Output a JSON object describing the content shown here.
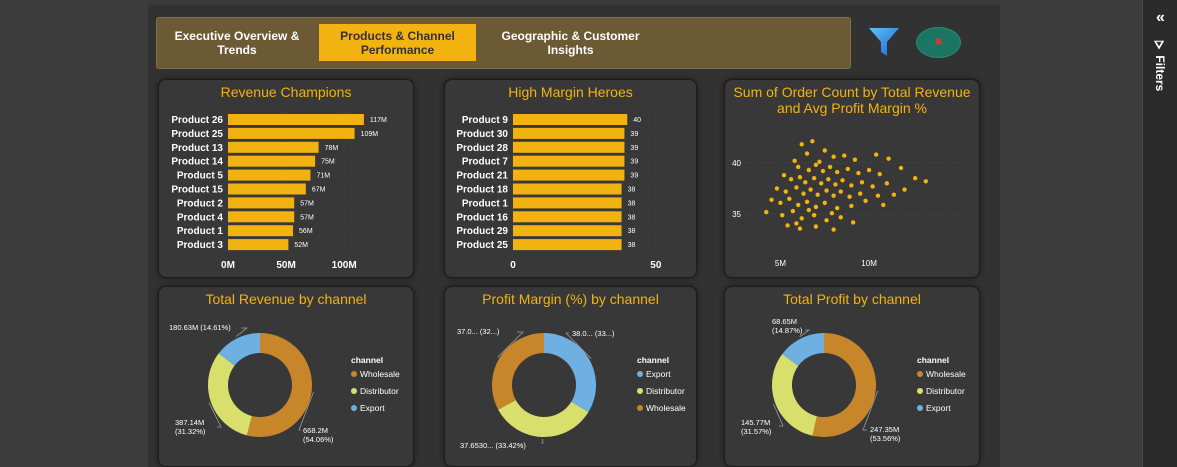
{
  "colors": {
    "accent": "#f2b311",
    "wholesale": "#c8862a",
    "distributor": "#d9df6c",
    "export": "#6fb0e3"
  },
  "tabs": [
    {
      "label": "Executive Overview & Trends",
      "line1": "Executive Overview &",
      "line2": "Trends"
    },
    {
      "label": "Products & Channel Performance",
      "line1": "Products & Channel",
      "line2": "Performance"
    },
    {
      "label": "Geographic & Customer Insights",
      "line1": "Geographic & Customer",
      "line2": "Insights"
    }
  ],
  "icons": {
    "filter": "filter-funnel-icon",
    "clear": "clear-filter-icon",
    "collapse": "double-chevron-left-icon"
  },
  "side_panel": {
    "collapse_glyph": "«",
    "label": "Filters",
    "funnel_glyph": "⛛"
  },
  "chart_data": [
    {
      "type": "bar",
      "title": "Revenue Champions",
      "categories": [
        "Product 26",
        "Product 25",
        "Product 13",
        "Product 14",
        "Product 5",
        "Product 15",
        "Product 2",
        "Product 4",
        "Product 1",
        "Product 3"
      ],
      "values": [
        117,
        109,
        78,
        75,
        71,
        67,
        57,
        57,
        56,
        52
      ],
      "data_labels": [
        "117M",
        "109M",
        "78M",
        "75M",
        "71M",
        "67M",
        "57M",
        "57M",
        "56M",
        "52M"
      ],
      "ticks": [
        0,
        50,
        100
      ],
      "tick_labels": [
        "0M",
        "50M",
        "100M"
      ],
      "xlim": [
        0,
        130
      ]
    },
    {
      "type": "bar",
      "title": "High Margin Heroes",
      "categories": [
        "Product 9",
        "Product 30",
        "Product 28",
        "Product 7",
        "Product 21",
        "Product 18",
        "Product 1",
        "Product 16",
        "Product 29",
        "Product 25"
      ],
      "values": [
        40,
        39,
        39,
        39,
        39,
        38,
        38,
        38,
        38,
        38
      ],
      "data_labels": [
        "40",
        "39",
        "39",
        "39",
        "39",
        "38",
        "38",
        "38",
        "38",
        "38"
      ],
      "ticks": [
        0,
        50
      ],
      "tick_labels": [
        "0",
        "50"
      ],
      "xlim": [
        0,
        56
      ]
    },
    {
      "type": "scatter",
      "title": "Sum of Order Count by Total Revenue and Avg Profit Margin %",
      "title_line1": "Sum of Order Count by Total Revenue",
      "title_line2": "and Avg Profit Margin %",
      "xlim": [
        3,
        14
      ],
      "ylim": [
        32,
        43
      ],
      "x_ticks": [
        5,
        10
      ],
      "x_tick_labels": [
        "5M",
        "10M"
      ],
      "y_ticks": [
        35,
        40
      ],
      "y_tick_labels": [
        "35",
        "40"
      ],
      "points": [
        [
          6.2,
          41.8
        ],
        [
          6.8,
          42.1
        ],
        [
          7.5,
          41.2
        ],
        [
          8.0,
          40.6
        ],
        [
          5.8,
          40.2
        ],
        [
          6.5,
          40.9
        ],
        [
          7.2,
          40.1
        ],
        [
          8.6,
          40.7
        ],
        [
          9.2,
          40.3
        ],
        [
          10.4,
          40.8
        ],
        [
          11.1,
          40.4
        ],
        [
          6.0,
          39.6
        ],
        [
          6.6,
          39.3
        ],
        [
          7.0,
          39.8
        ],
        [
          7.4,
          39.2
        ],
        [
          7.8,
          39.6
        ],
        [
          8.2,
          39.1
        ],
        [
          8.8,
          39.4
        ],
        [
          9.4,
          39.0
        ],
        [
          10.0,
          39.3
        ],
        [
          10.6,
          38.9
        ],
        [
          11.8,
          39.5
        ],
        [
          5.2,
          38.8
        ],
        [
          5.6,
          38.4
        ],
        [
          6.1,
          38.6
        ],
        [
          6.4,
          38.1
        ],
        [
          6.9,
          38.5
        ],
        [
          7.3,
          38.0
        ],
        [
          7.7,
          38.4
        ],
        [
          8.1,
          37.9
        ],
        [
          8.5,
          38.3
        ],
        [
          9.0,
          37.8
        ],
        [
          9.6,
          38.1
        ],
        [
          10.2,
          37.7
        ],
        [
          11.0,
          38.0
        ],
        [
          12.6,
          38.5
        ],
        [
          13.2,
          38.2
        ],
        [
          4.8,
          37.5
        ],
        [
          5.3,
          37.2
        ],
        [
          5.9,
          37.6
        ],
        [
          6.3,
          37.0
        ],
        [
          6.7,
          37.4
        ],
        [
          7.1,
          36.9
        ],
        [
          7.6,
          37.3
        ],
        [
          8.0,
          36.8
        ],
        [
          8.4,
          37.2
        ],
        [
          8.9,
          36.7
        ],
        [
          9.5,
          37.0
        ],
        [
          10.5,
          36.8
        ],
        [
          11.4,
          36.9
        ],
        [
          4.5,
          36.4
        ],
        [
          5.0,
          36.1
        ],
        [
          5.5,
          36.5
        ],
        [
          6.0,
          35.9
        ],
        [
          6.5,
          36.2
        ],
        [
          7.0,
          35.7
        ],
        [
          7.5,
          36.1
        ],
        [
          8.2,
          35.6
        ],
        [
          9.0,
          35.8
        ],
        [
          4.2,
          35.2
        ],
        [
          5.1,
          34.9
        ],
        [
          5.7,
          35.3
        ],
        [
          6.2,
          34.6
        ],
        [
          6.9,
          34.9
        ],
        [
          7.6,
          34.4
        ],
        [
          8.4,
          34.7
        ],
        [
          9.1,
          34.2
        ],
        [
          5.4,
          33.9
        ],
        [
          6.1,
          33.6
        ],
        [
          7.0,
          33.8
        ],
        [
          8.0,
          33.5
        ],
        [
          5.9,
          34.1
        ],
        [
          6.6,
          35.4
        ],
        [
          7.9,
          35.1
        ],
        [
          10.8,
          35.9
        ],
        [
          12.0,
          37.4
        ],
        [
          9.8,
          36.3
        ]
      ]
    },
    {
      "type": "pie",
      "title": "Total Revenue by channel",
      "legend_title": "channel",
      "slices": [
        {
          "name": "Wholesale",
          "value": 668.2,
          "label": "668.2M (54.06%)",
          "l1": "668.2M",
          "l2": "(54.06%)"
        },
        {
          "name": "Distributor",
          "value": 387.14,
          "label": "387.14M (31.32%)",
          "l1": "387.14M",
          "l2": "(31.32%)"
        },
        {
          "name": "Export",
          "value": 180.63,
          "label": "180.63M (14.61%)",
          "l1": "180.63M (14.61%)",
          "l2": ""
        }
      ]
    },
    {
      "type": "pie",
      "title": "Profit Margin (%) by channel",
      "legend_title": "channel",
      "slices": [
        {
          "name": "Export",
          "value": 38.0,
          "label": "38.0... (33...)",
          "l1": "38.0... (33...)",
          "l2": ""
        },
        {
          "name": "Distributor",
          "value": 37.653,
          "label": "37.6530... (33.42%)",
          "l1": "37.6530... (33.42%)",
          "l2": ""
        },
        {
          "name": "Wholesale",
          "value": 37.0,
          "label": "37.0... (32...)",
          "l1": "37.0... (32...)",
          "l2": ""
        }
      ]
    },
    {
      "type": "pie",
      "title": "Total Profit by channel",
      "legend_title": "channel",
      "slices": [
        {
          "name": "Wholesale",
          "value": 247.35,
          "label": "247.35M (53.56%)",
          "l1": "247.35M",
          "l2": "(53.56%)"
        },
        {
          "name": "Distributor",
          "value": 145.77,
          "label": "145.77M (31.57%)",
          "l1": "145.77M",
          "l2": "(31.57%)"
        },
        {
          "name": "Export",
          "value": 68.65,
          "label": "68.65M (14.87%)",
          "l1": "68.65M",
          "l2": "(14.87%)"
        }
      ]
    }
  ]
}
